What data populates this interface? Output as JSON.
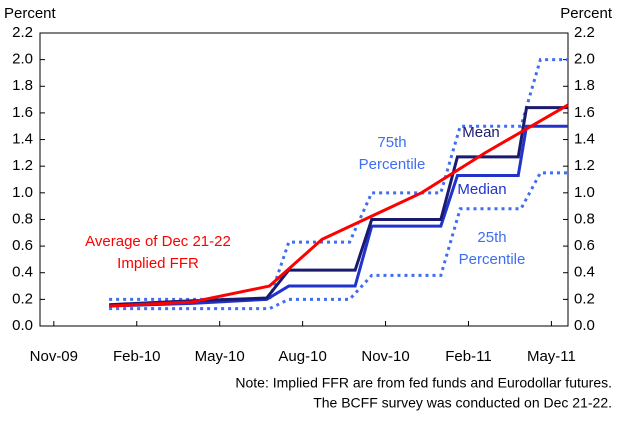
{
  "chart_data": {
    "type": "line",
    "y_label": "Percent",
    "y2_label": "Percent",
    "xlim": [
      -0.5,
      18.6
    ],
    "xticks": [
      {
        "value": 0,
        "label": "Nov-09"
      },
      {
        "value": 3,
        "label": "Feb-10"
      },
      {
        "value": 6,
        "label": "May-10"
      },
      {
        "value": 9,
        "label": "Aug-10"
      },
      {
        "value": 12,
        "label": "Nov-10"
      },
      {
        "value": 15,
        "label": "Feb-11"
      },
      {
        "value": 18,
        "label": "May-11"
      }
    ],
    "ylim": [
      0,
      2.2
    ],
    "yticks": [
      {
        "value": 0,
        "label": "0.0"
      },
      0.2,
      0.4,
      0.6,
      0.8,
      {
        "value": 1,
        "label": "1.0"
      },
      1.2,
      1.4,
      1.6,
      1.8,
      {
        "value": 2,
        "label": "2.0"
      },
      2.2
    ],
    "y2lim": [
      0,
      2.2
    ],
    "y2ticks": [
      {
        "value": 0,
        "label": "0.0"
      },
      0.2,
      0.4,
      0.6,
      0.8,
      {
        "value": 1,
        "label": "1.0"
      },
      1.2,
      1.4,
      1.6,
      1.8,
      {
        "value": 2,
        "label": "2.0"
      },
      2.2
    ],
    "series": [
      {
        "label": [
          "75th",
          "Percentile"
        ],
        "color": "#3f6ef0",
        "dash": "dotted",
        "x": [
          2,
          7.8,
          8.5,
          10.7,
          11.5,
          14,
          14.7,
          16.9,
          17.6,
          18.6
        ],
        "values": [
          0.2,
          0.2,
          0.63,
          0.63,
          1.0,
          1.0,
          1.5,
          1.5,
          2.0,
          2.0
        ]
      },
      {
        "label": [
          "25th",
          "Percentile"
        ],
        "color": "#3f6ef0",
        "dash": "dotted",
        "x": [
          2,
          7.8,
          8.5,
          10.7,
          11.5,
          14,
          14.7,
          16.9,
          17.6,
          18.6
        ],
        "values": [
          0.13,
          0.13,
          0.2,
          0.2,
          0.38,
          0.38,
          0.88,
          0.88,
          1.15,
          1.15
        ]
      },
      {
        "label": [
          "Median"
        ],
        "color": "#2233cc",
        "dash": "solid",
        "x": [
          2,
          5,
          7.7,
          8.5,
          10.9,
          11.5,
          14,
          14.6,
          16.8,
          17.1,
          18.6
        ],
        "values": [
          0.15,
          0.17,
          0.2,
          0.3,
          0.3,
          0.75,
          0.75,
          1.13,
          1.13,
          1.5,
          1.5
        ]
      },
      {
        "label": [
          "Mean"
        ],
        "color": "#1a1a6e",
        "dash": "solid",
        "x": [
          2,
          5,
          7.7,
          8.5,
          10.9,
          11.5,
          14,
          14.6,
          16.8,
          17.1,
          18.6
        ],
        "values": [
          0.16,
          0.19,
          0.21,
          0.42,
          0.42,
          0.8,
          0.8,
          1.27,
          1.27,
          1.64,
          1.64
        ]
      },
      {
        "label": [
          "Average of Dec 21-22",
          "Implied FFR"
        ],
        "color": "#ff0000",
        "dash": "solid",
        "x": [
          2,
          5,
          7.8,
          9.7,
          13.3,
          15.6,
          18.6
        ],
        "values": [
          0.15,
          0.18,
          0.3,
          0.65,
          1.0,
          1.3,
          1.66
        ]
      }
    ],
    "notes": [
      "Note: Implied FFR are from fed funds and Eurodollar futures.",
      "The BCFF survey was conducted on Dec 21-22."
    ]
  }
}
